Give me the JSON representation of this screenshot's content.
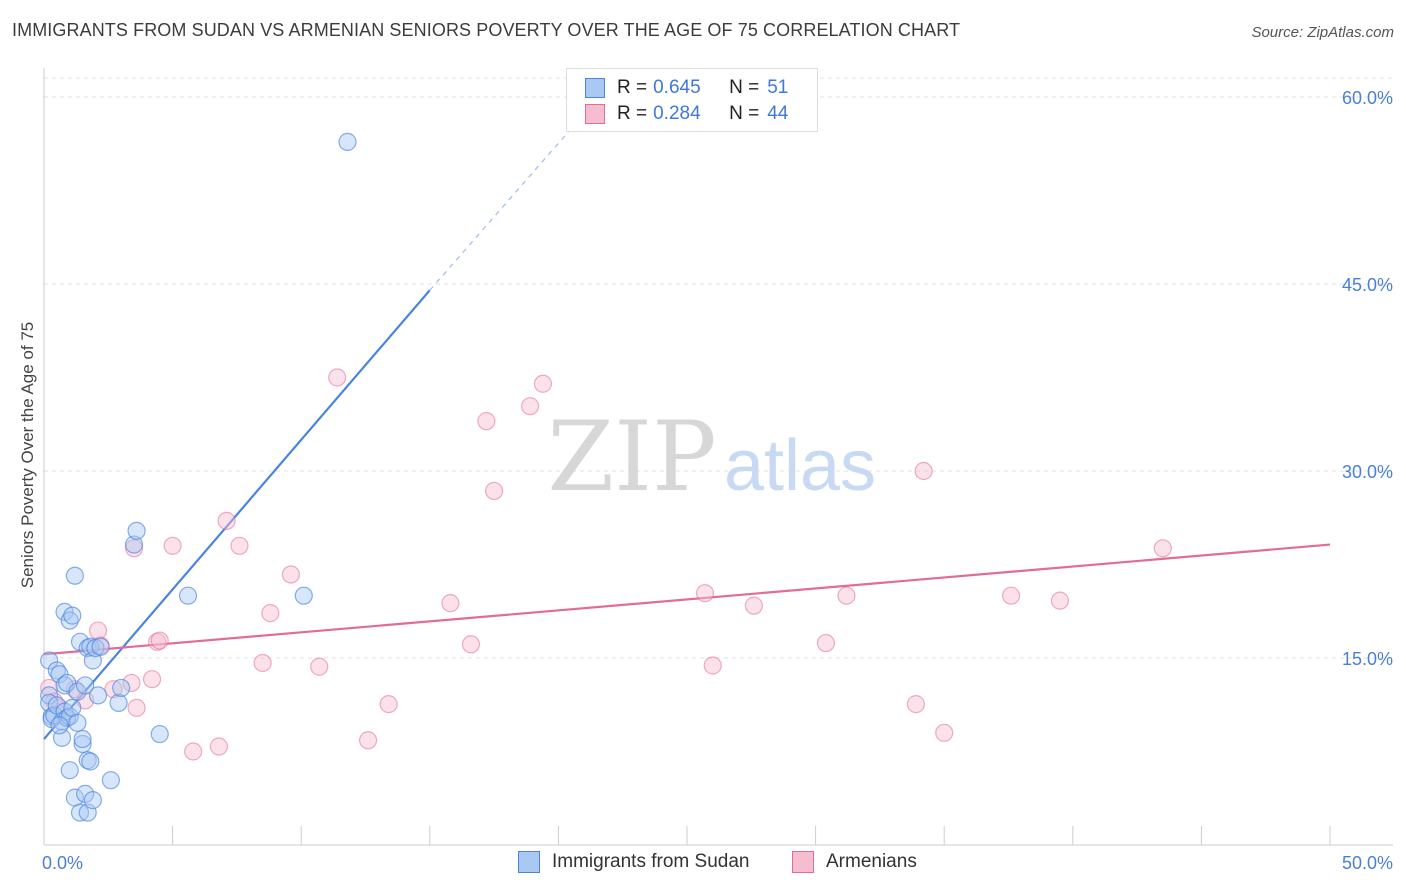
{
  "title": "IMMIGRANTS FROM SUDAN VS ARMENIAN SENIORS POVERTY OVER THE AGE OF 75 CORRELATION CHART",
  "source": "Source: ZipAtlas.com",
  "watermark": {
    "zip": "ZIP",
    "atlas": "atlas"
  },
  "colors": {
    "blue": "#4a84e0",
    "blue_fill": "#a9c8f2",
    "pink": "#e36b97",
    "pink_fill": "#f6bcd0",
    "axis_text": "#4a7fd6",
    "grid": "#e0e0e0"
  },
  "legend": {
    "rows": [
      {
        "r_label": "R =",
        "r_value": "0.645",
        "n_label": "N =",
        "n_value": "51"
      },
      {
        "r_label": "R =",
        "r_value": "0.284",
        "n_label": "N =",
        "n_value": "44"
      }
    ]
  },
  "bottom_legend": {
    "series1": "Immigrants from Sudan",
    "series2": "Armenians"
  },
  "chart_data": {
    "type": "scatter",
    "title": "IMMIGRANTS FROM SUDAN VS ARMENIAN SENIORS POVERTY OVER THE AGE OF 75 CORRELATION CHART",
    "xlabel": "",
    "ylabel": "Seniors Poverty Over the Age of 75",
    "xlim": [
      0,
      50
    ],
    "ylim": [
      0,
      60
    ],
    "x_tick_labels": [
      "0.0%",
      "50.0%"
    ],
    "y_ticks": [
      15,
      30,
      45,
      60
    ],
    "y_tick_labels": [
      "15.0%",
      "30.0%",
      "45.0%",
      "60.0%"
    ],
    "grid": true,
    "series": [
      {
        "name": "Immigrants from Sudan",
        "color": "#4a84e0",
        "points": [
          [
            0.2,
            14.8
          ],
          [
            0.2,
            12.0
          ],
          [
            0.2,
            11.4
          ],
          [
            0.3,
            10.3
          ],
          [
            0.3,
            10.1
          ],
          [
            0.4,
            10.4
          ],
          [
            0.5,
            14.0
          ],
          [
            0.5,
            11.2
          ],
          [
            0.6,
            13.7
          ],
          [
            0.7,
            9.9
          ],
          [
            0.7,
            8.6
          ],
          [
            0.8,
            12.8
          ],
          [
            0.8,
            10.7
          ],
          [
            0.8,
            18.7
          ],
          [
            0.9,
            13.0
          ],
          [
            0.9,
            10.2
          ],
          [
            1.0,
            18.0
          ],
          [
            1.0,
            10.3
          ],
          [
            1.0,
            6.0
          ],
          [
            1.1,
            18.4
          ],
          [
            1.1,
            11.0
          ],
          [
            1.2,
            21.6
          ],
          [
            1.2,
            3.8
          ],
          [
            1.3,
            12.3
          ],
          [
            1.3,
            9.8
          ],
          [
            1.4,
            16.3
          ],
          [
            1.4,
            2.6
          ],
          [
            1.5,
            8.1
          ],
          [
            1.5,
            8.5
          ],
          [
            1.6,
            12.8
          ],
          [
            1.6,
            4.1
          ],
          [
            1.7,
            15.8
          ],
          [
            1.7,
            6.8
          ],
          [
            1.7,
            2.6
          ],
          [
            1.8,
            6.7
          ],
          [
            1.8,
            15.9
          ],
          [
            1.9,
            14.8
          ],
          [
            1.9,
            3.6
          ],
          [
            2.0,
            15.8
          ],
          [
            2.1,
            12.0
          ],
          [
            2.2,
            15.9
          ],
          [
            2.6,
            5.2
          ],
          [
            2.9,
            11.4
          ],
          [
            3.0,
            12.6
          ],
          [
            3.5,
            24.1
          ],
          [
            3.6,
            25.2
          ],
          [
            4.5,
            8.9
          ],
          [
            5.6,
            20.0
          ],
          [
            10.1,
            20.0
          ],
          [
            11.8,
            56.4
          ],
          [
            0.6,
            9.6
          ]
        ],
        "trend": {
          "x": [
            0.0,
            15.0
          ],
          "y": [
            8.5,
            44.5
          ],
          "dashed_to": [
            22.0,
            61.0
          ]
        }
      },
      {
        "name": "Armenians",
        "color": "#e36b97",
        "points": [
          [
            0.2,
            12.6
          ],
          [
            0.4,
            11.5
          ],
          [
            0.6,
            11.0
          ],
          [
            0.9,
            10.2
          ],
          [
            1.2,
            12.5
          ],
          [
            1.6,
            11.6
          ],
          [
            2.1,
            17.2
          ],
          [
            2.2,
            16.0
          ],
          [
            2.7,
            12.5
          ],
          [
            3.4,
            13.0
          ],
          [
            3.6,
            11.0
          ],
          [
            3.5,
            23.8
          ],
          [
            4.2,
            13.3
          ],
          [
            4.4,
            16.3
          ],
          [
            4.5,
            16.4
          ],
          [
            5.0,
            24.0
          ],
          [
            5.8,
            7.5
          ],
          [
            6.8,
            7.9
          ],
          [
            7.1,
            26.0
          ],
          [
            7.6,
            24.0
          ],
          [
            8.5,
            14.6
          ],
          [
            8.8,
            18.6
          ],
          [
            9.6,
            21.7
          ],
          [
            10.7,
            14.3
          ],
          [
            11.4,
            37.5
          ],
          [
            12.6,
            8.4
          ],
          [
            13.4,
            11.3
          ],
          [
            15.8,
            19.4
          ],
          [
            16.6,
            16.1
          ],
          [
            17.2,
            34.0
          ],
          [
            17.5,
            28.4
          ],
          [
            18.9,
            35.2
          ],
          [
            19.4,
            37.0
          ],
          [
            25.7,
            20.2
          ],
          [
            26.0,
            14.4
          ],
          [
            27.6,
            19.2
          ],
          [
            30.4,
            16.2
          ],
          [
            31.2,
            20.0
          ],
          [
            34.2,
            30.0
          ],
          [
            33.9,
            11.3
          ],
          [
            35.0,
            9.0
          ],
          [
            37.6,
            20.0
          ],
          [
            39.5,
            19.6
          ],
          [
            43.5,
            23.8
          ]
        ],
        "trend": {
          "x": [
            0.0,
            50.0
          ],
          "y": [
            15.3,
            24.1
          ]
        }
      }
    ]
  }
}
